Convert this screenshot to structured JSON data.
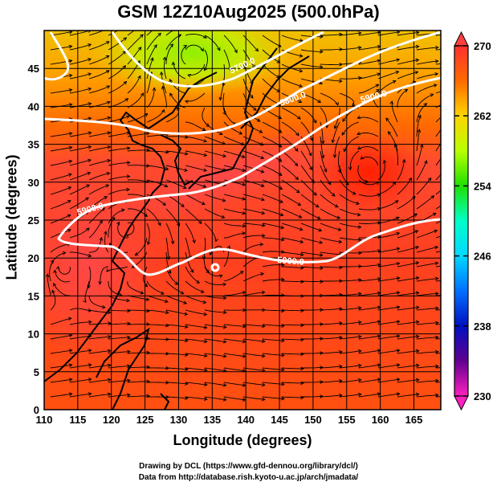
{
  "title": "GSM 12Z10Aug2025 (500.0hPa)",
  "xlabel": "Longitude (degrees)",
  "ylabel": "Latitude  (degrees)",
  "footer": [
    "Drawing by DCL (https://www.gfd-dennou.org/library/dcl/)",
    "Data from http://database.rish.kyoto-u.ac.jp/arch/jmadata/"
  ],
  "chart_data": {
    "type": "map",
    "x_ticks": [
      "110",
      "115",
      "120",
      "125",
      "130",
      "135",
      "140",
      "145",
      "150",
      "155",
      "160",
      "165"
    ],
    "y_ticks": [
      "0",
      "5",
      "10",
      "15",
      "20",
      "25",
      "30",
      "35",
      "40",
      "45"
    ],
    "xlim": [
      110,
      169
    ],
    "ylim": [
      0,
      50
    ],
    "colorbar": {
      "min": 230,
      "max": 270,
      "labels": [
        "270",
        "262",
        "254",
        "246",
        "238",
        "230"
      ],
      "stops": [
        "#ff3030",
        "#ff6a00",
        "#ffd400",
        "#b8ff00",
        "#20e000",
        "#00ffc8",
        "#00d8ff",
        "#0070ff",
        "#0010c0",
        "#600090",
        "#ff20c0"
      ]
    },
    "contour_labels": [
      "5700.0",
      "5800.0",
      "5900.0",
      "5900.0",
      "5900.0"
    ]
  }
}
